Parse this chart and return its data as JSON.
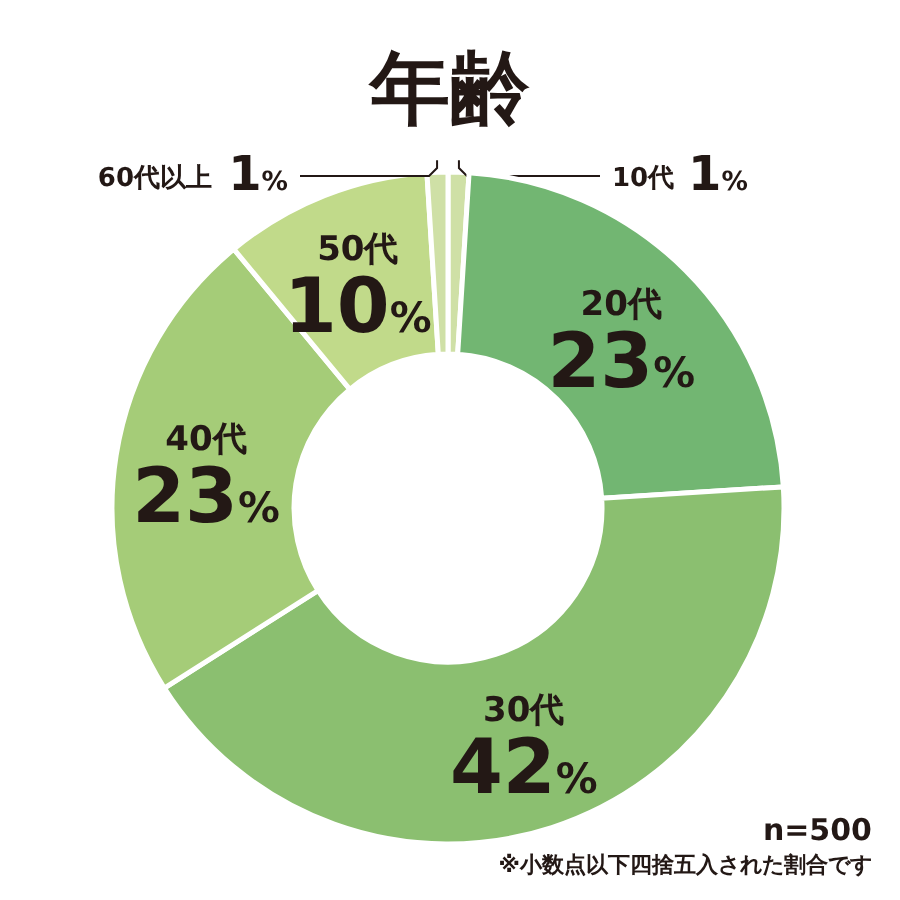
{
  "chart_data": {
    "type": "donut",
    "title": "年齢",
    "categories": [
      "10代",
      "20代",
      "30代",
      "40代",
      "50代",
      "60代以上"
    ],
    "values": [
      1,
      23,
      42,
      23,
      10,
      1
    ],
    "colors": [
      "#cfe0a6",
      "#72b672",
      "#8bbf70",
      "#a5cc78",
      "#c1da8a",
      "#cfe0a6"
    ],
    "value_labels": [
      "1%",
      "23%",
      "42%",
      "23%",
      "10%",
      "1%"
    ],
    "annotations": [
      "n=500",
      "※小数点以下四捨五入された割合です"
    ]
  }
}
